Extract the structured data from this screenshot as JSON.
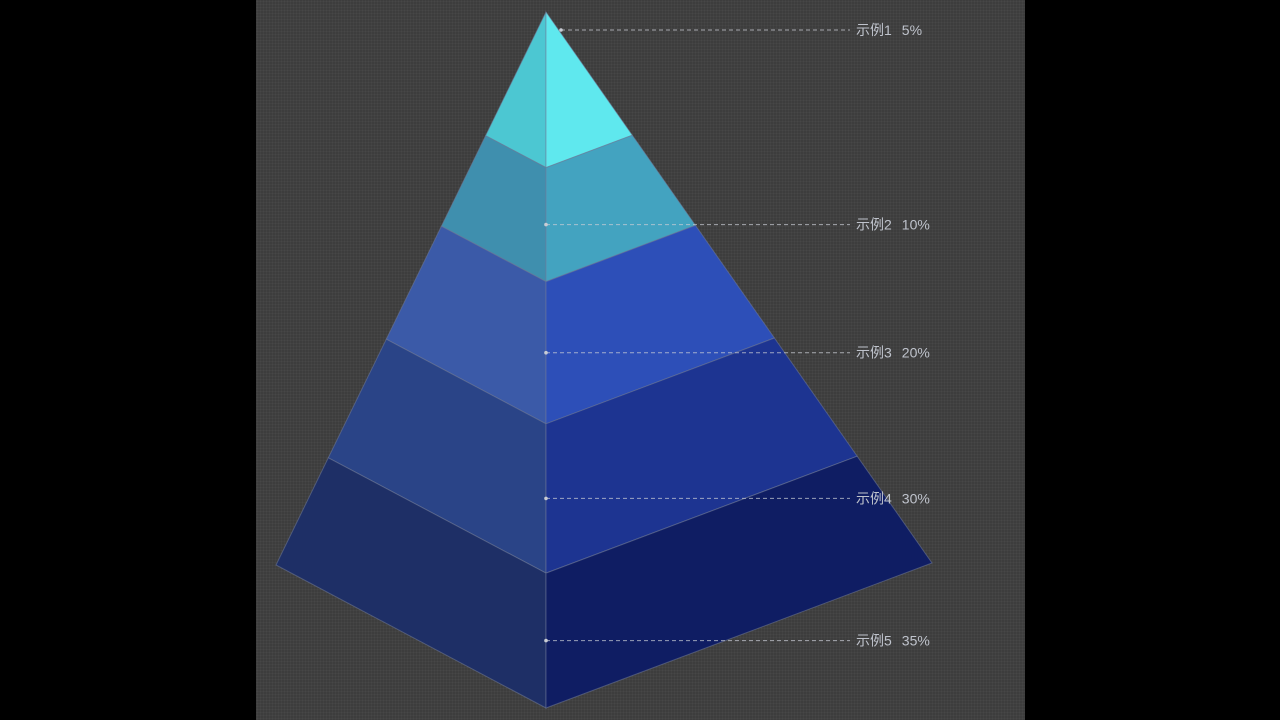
{
  "chart_data": {
    "type": "pyramid",
    "title": "",
    "series": [
      {
        "name": "",
        "items": [
          {
            "name": "示例1",
            "value": 5,
            "value_label": "5%",
            "color_left": "#4cc7d2",
            "color_right": "#5fe8ee"
          },
          {
            "name": "示例2",
            "value": 10,
            "value_label": "10%",
            "color_left": "#3f8fae",
            "color_right": "#43a3c0"
          },
          {
            "name": "示例3",
            "value": 20,
            "value_label": "20%",
            "color_left": "#3b5aa8",
            "color_right": "#2d4fb8"
          },
          {
            "name": "示例4",
            "value": 30,
            "value_label": "30%",
            "color_left": "#2a4487",
            "color_right": "#1d3491"
          },
          {
            "name": "示例5",
            "value": 35,
            "value_label": "35%",
            "color_left": "#1e2f66",
            "color_right": "#0f1d63"
          }
        ]
      }
    ],
    "edge_color": "#6f7a99",
    "leader_color": "#c9ccd4",
    "legend": "none",
    "grid": false
  }
}
